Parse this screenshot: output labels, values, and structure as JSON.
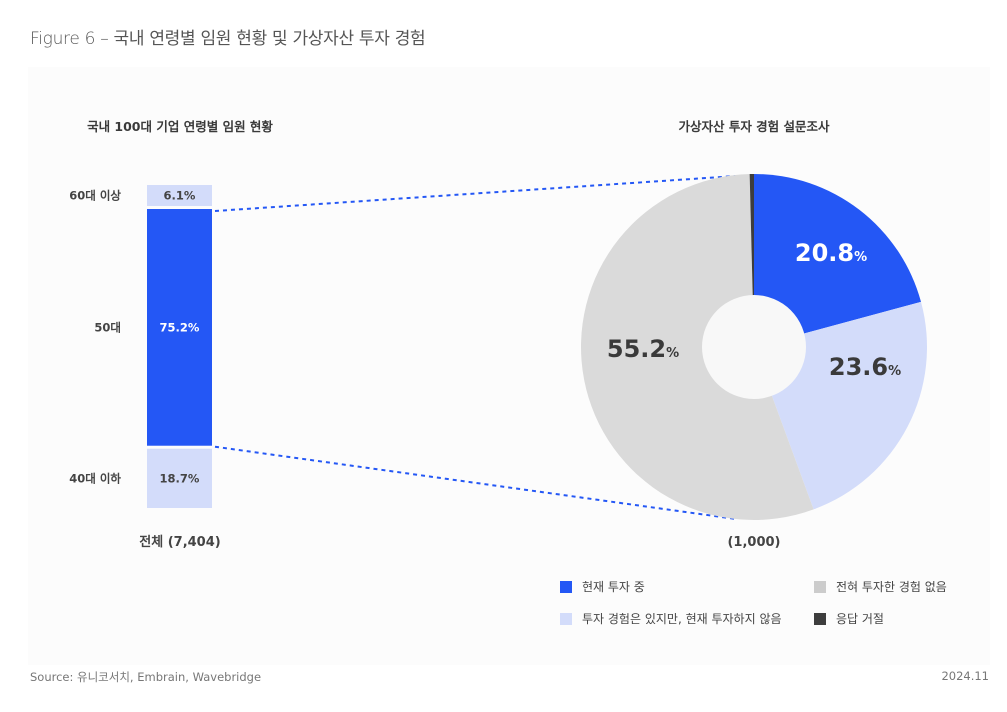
{
  "figure_title": "Figure 6 – 국내 연령별 임원 현황 및 가상자산 투자 경험",
  "chart_data": [
    {
      "type": "bar",
      "stacked": true,
      "orientation": "vertical",
      "title": "국내 100대 기업 연령별 임원 현황",
      "total_label": "전체 (7,404)",
      "categories": [
        "60대 이상",
        "50대",
        "40대 이하"
      ],
      "values": [
        6.1,
        75.2,
        18.7
      ],
      "value_labels": [
        "6.1%",
        "75.2%",
        "18.7%"
      ],
      "colors": [
        "#d3dcfa",
        "#2457f5",
        "#d3dcfa"
      ],
      "label_colors": [
        "#444444",
        "#ffffff",
        "#444444"
      ],
      "highlight_category": "50대",
      "unit": "%"
    },
    {
      "type": "pie",
      "donut": true,
      "title": "가상자산 투자 경험 설문조사",
      "total_label": "(1,000)",
      "slices": [
        {
          "name": "현재 투자 중",
          "value": 20.8,
          "label": "20.8",
          "color": "#2457f5",
          "label_color": "#ffffff"
        },
        {
          "name": "투자 경험은 있지만, 현재 투자하지 않음",
          "value": 23.6,
          "label": "23.6",
          "color": "#d3dcfa",
          "label_color": "#3a3a3a"
        },
        {
          "name": "전혀 투자한 경험 없음",
          "value": 55.2,
          "label": "55.2",
          "color": "#dadada",
          "label_color": "#3a3a3a"
        },
        {
          "name": "응답 거절",
          "value": 0.4,
          "label": "",
          "color": "#3d3d3d",
          "label_color": "#3a3a3a"
        }
      ],
      "percent_symbol": "%",
      "legend": [
        {
          "label": "현재 투자 중",
          "color": "#2457f5"
        },
        {
          "label": "전혀 투자한 경험 없음",
          "color": "#cccccc"
        },
        {
          "label": "투자 경험은 있지만, 현재 투자하지 않음",
          "color": "#d3dcfa"
        },
        {
          "label": "응답 거절",
          "color": "#3d3d3d"
        }
      ],
      "legend_position": "bottom-right"
    }
  ],
  "footer": {
    "source": "Source:  유니코서치, Embrain, Wavebridge",
    "date": "2024.11"
  }
}
